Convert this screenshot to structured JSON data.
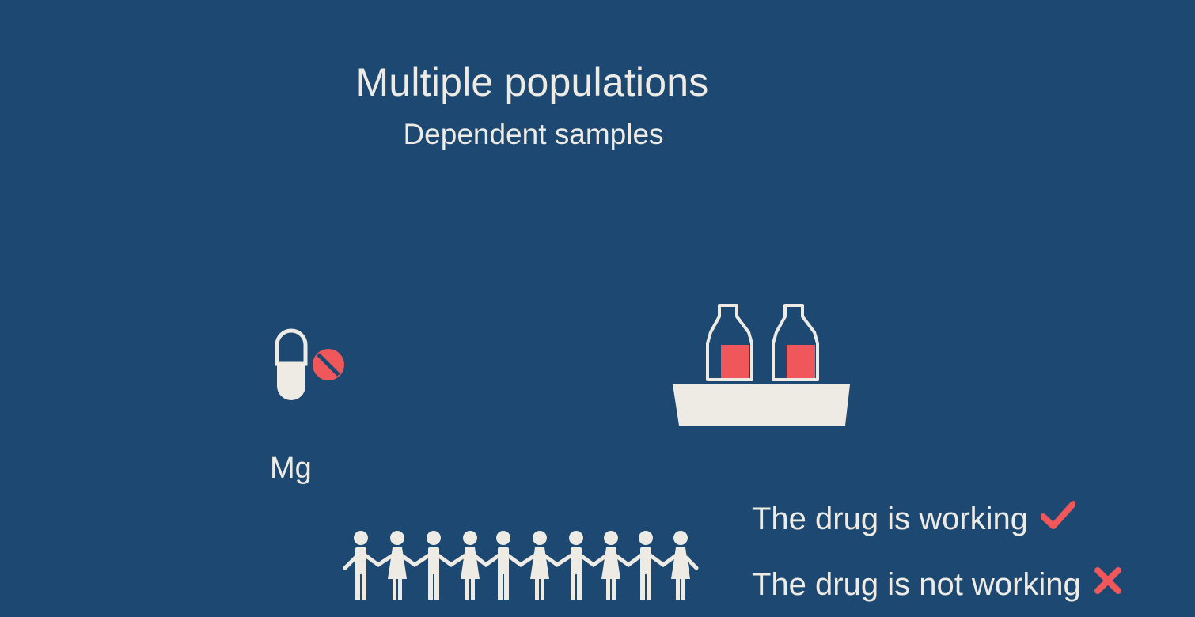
{
  "slide": {
    "title": "Multiple populations",
    "subtitle": "Dependent samples"
  },
  "left_panel": {
    "drug_label": "Mg",
    "icons": [
      "capsule-icon",
      "no-pill-icon",
      "people-group-icon"
    ],
    "people_count": 10
  },
  "right_panel": {
    "icons": [
      "bottle-icon",
      "bottle-icon",
      "tray-icon"
    ],
    "statements": [
      {
        "text": "The drug is working",
        "mark": "check-icon"
      },
      {
        "text": "The drug is not working",
        "mark": "cross-icon"
      }
    ]
  },
  "colors": {
    "background": "#1c4871",
    "foreground": "#eeebe4",
    "accent": "#f0575a"
  }
}
